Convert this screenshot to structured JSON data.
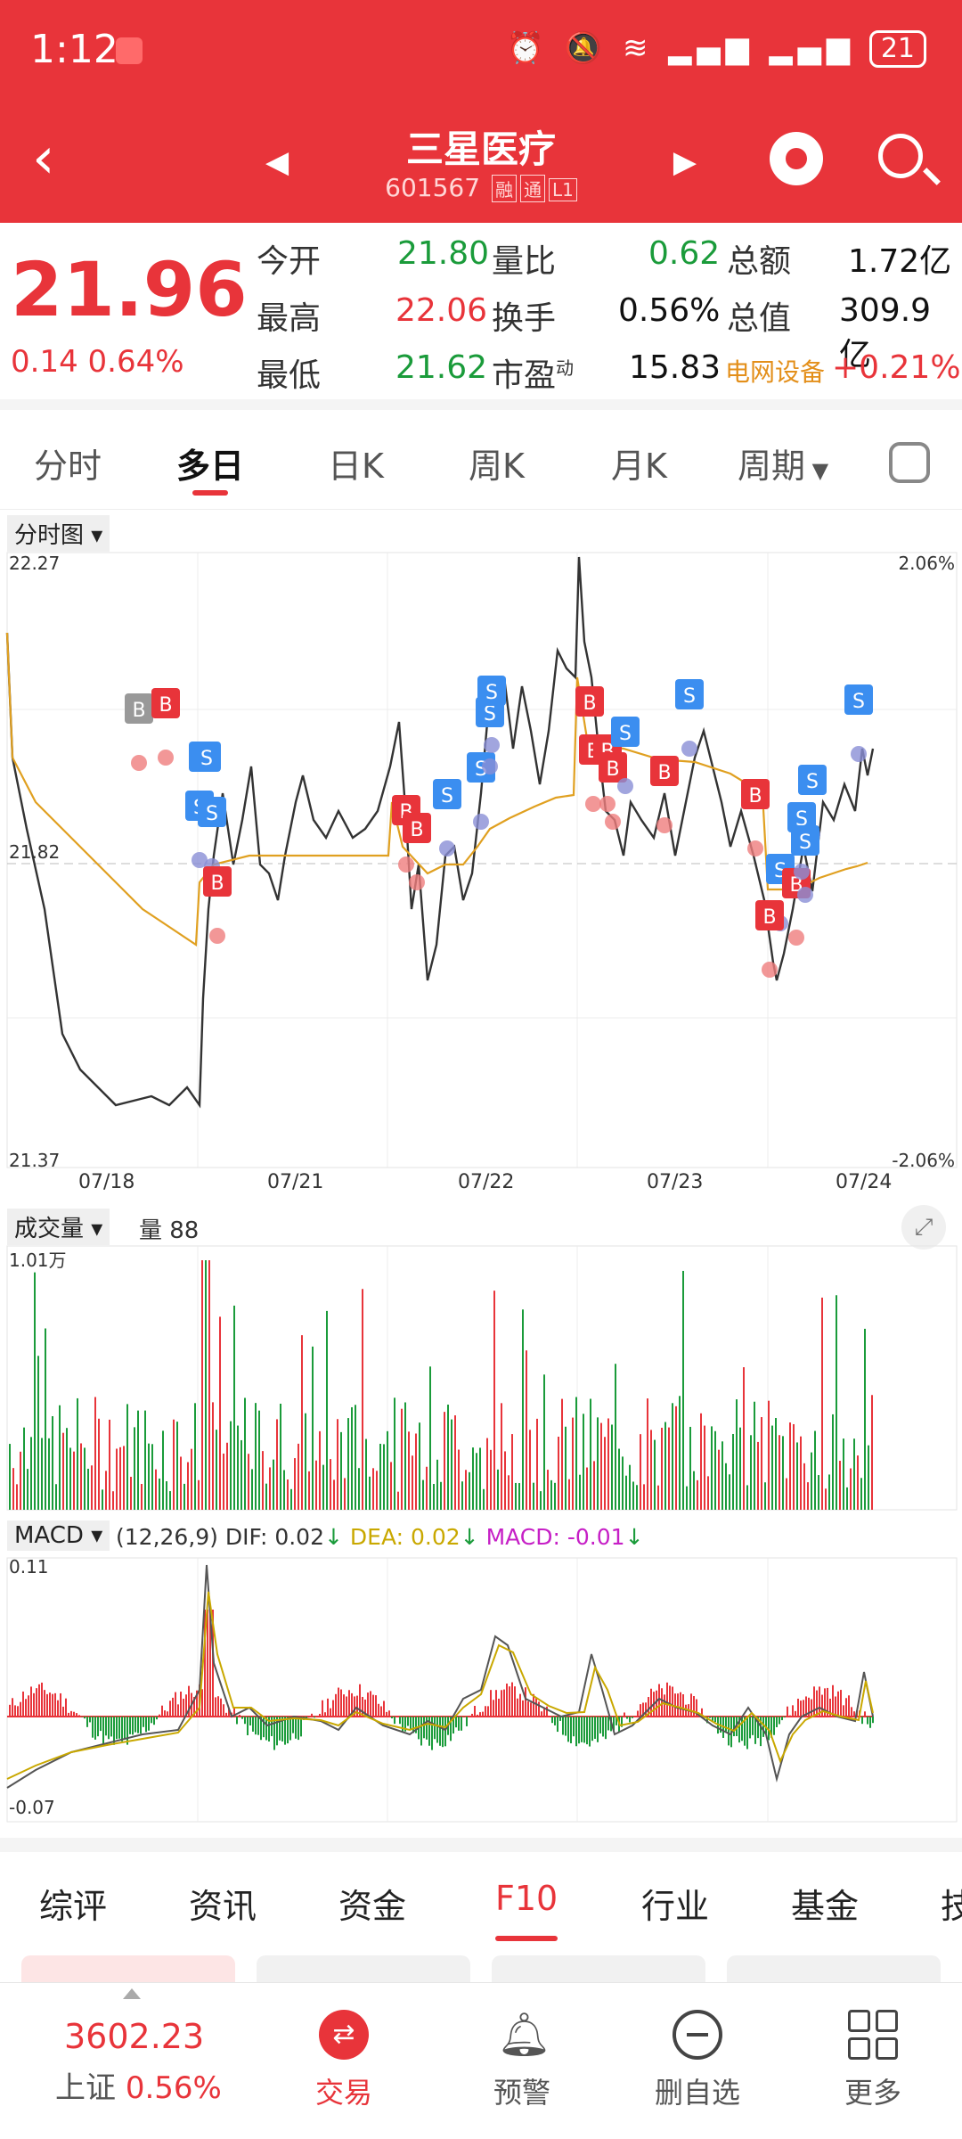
{
  "status_bar": {
    "time": "1:12",
    "battery": "21"
  },
  "header": {
    "title": "三星医疗",
    "code": "601567",
    "tags": [
      "融",
      "通",
      "L1"
    ]
  },
  "quote": {
    "price": "21.96",
    "change": "0.14",
    "change_pct": "0.64%",
    "rows": [
      [
        {
          "label": "今开",
          "value": "21.80"
        },
        {
          "label": "量比",
          "value": "0.62"
        },
        {
          "label": "总额",
          "value": "1.72亿"
        }
      ],
      [
        {
          "label": "最高",
          "value": "22.06"
        },
        {
          "label": "换手",
          "value": "0.56%"
        },
        {
          "label": "总值",
          "value": "309.9亿"
        }
      ],
      [
        {
          "label": "最低",
          "value": "21.62"
        },
        {
          "label": "市盈",
          "value": "15.83",
          "sup": "动"
        },
        {
          "label": "电网设备",
          "value": "+0.21%"
        }
      ]
    ]
  },
  "period_tabs": [
    "分时",
    "多日",
    "日K",
    "周K",
    "月K",
    "周期"
  ],
  "active_period": "多日",
  "chart": {
    "panel_label": "分时图",
    "top_price": "22.27",
    "mid_price": "21.82",
    "bottom_price": "21.37",
    "top_pct": "2.06%",
    "bottom_pct": "-2.06%",
    "dates": [
      "07/18",
      "07/21",
      "07/22",
      "07/23",
      "07/24"
    ]
  },
  "volume": {
    "panel_label": "成交量",
    "qty_label": "量 88",
    "max": "1.01万"
  },
  "macd": {
    "panel_label": "MACD",
    "params": "(12,26,9)",
    "dif": "DIF: 0.02",
    "dea": "DEA: 0.02",
    "macd": "MACD: -0.01",
    "top": "0.11",
    "bottom": "-0.07"
  },
  "function_tabs": [
    "综评",
    "资讯",
    "资金",
    "F10",
    "行业",
    "基金",
    "技"
  ],
  "active_function": "F10",
  "bottom_nav": {
    "index_value": "3602.23",
    "index_name": "上证",
    "index_pct": "0.56%",
    "items": [
      {
        "label": "交易",
        "icon": "trade-icon"
      },
      {
        "label": "预警",
        "icon": "bell-icon"
      },
      {
        "label": "删自选",
        "icon": "minus-circle-icon"
      },
      {
        "label": "更多",
        "icon": "grid-icon"
      }
    ]
  }
}
